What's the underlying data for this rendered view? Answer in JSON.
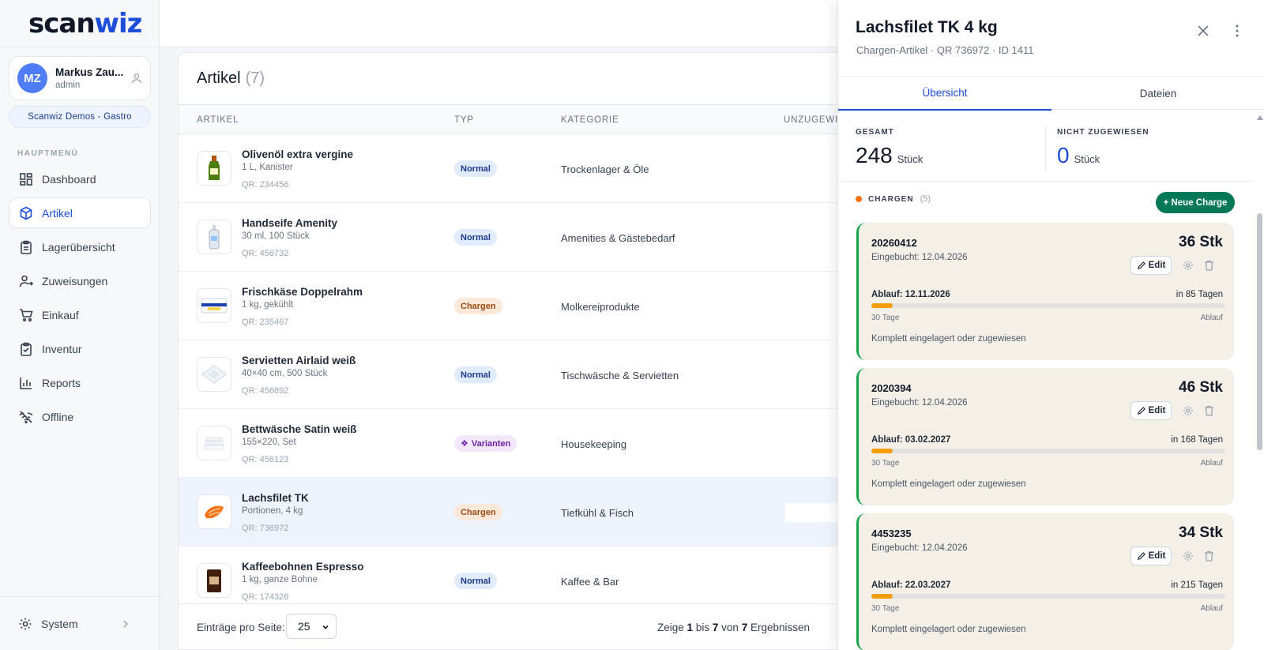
{
  "app": {
    "logo_a": "scan",
    "logo_b": "wiz"
  },
  "user": {
    "initials": "MZ",
    "name": "Markus Zau...",
    "role": "admin"
  },
  "org": "Scanwiz Demos - Gastro",
  "nav": {
    "section": "HAUPTMENÜ",
    "items": [
      {
        "label": "Dashboard",
        "icon": "dashboard-icon"
      },
      {
        "label": "Artikel",
        "icon": "box-icon",
        "active": true
      },
      {
        "label": "Lagerübersicht",
        "icon": "clipboard-icon"
      },
      {
        "label": "Zuweisungen",
        "icon": "user-assign-icon"
      },
      {
        "label": "Einkauf",
        "icon": "cart-icon"
      },
      {
        "label": "Inventur",
        "icon": "checklist-icon"
      },
      {
        "label": "Reports",
        "icon": "bar-chart-icon"
      },
      {
        "label": "Offline",
        "icon": "wifi-off-icon"
      }
    ],
    "system": "System"
  },
  "articles": {
    "title": "Artikel",
    "count": "(7)",
    "columns": {
      "artikel": "ARTIKEL",
      "typ": "TYP",
      "kategorie": "KATEGORIE",
      "unzugewiesen": "UNZUGEWIE"
    },
    "rows": [
      {
        "name": "Olivenöl extra vergine",
        "sub": "1 L, Kanister",
        "qr": "QR: 234456",
        "type": "Normal",
        "category": "Trockenlager & Öle"
      },
      {
        "name": "Handseife Amenity",
        "sub": "30 ml, 100 Stück",
        "qr": "QR: 456732",
        "type": "Normal",
        "category": "Amenities & Gästebedarf"
      },
      {
        "name": "Frischkäse Doppelrahm",
        "sub": "1 kg, gekühlt",
        "qr": "QR: 235467",
        "type": "Chargen",
        "category": "Molkereiprodukte"
      },
      {
        "name": "Servietten Airlaid weiß",
        "sub": "40×40 cm, 500 Stück",
        "qr": "QR: 456892",
        "type": "Normal",
        "category": "Tischwäsche & Servietten"
      },
      {
        "name": "Bettwäsche Satin weiß",
        "sub": "155×220, Set",
        "qr": "QR: 456123",
        "type": "Varianten",
        "category": "Housekeeping"
      },
      {
        "name": "Lachsfilet TK",
        "sub": "Portionen, 4 kg",
        "qr": "QR: 736972",
        "type": "Chargen",
        "category": "Tiefkühl & Fisch"
      },
      {
        "name": "Kaffeebohnen Espresso",
        "sub": "1 kg, ganze Bohne",
        "qr": "QR: 174326",
        "type": "Normal",
        "category": "Kaffee & Bar"
      }
    ],
    "footer": {
      "per_page_label": "Einträge pro Seite:",
      "per_page": "25",
      "res_a": "Zeige",
      "res_from": "1",
      "res_b": "bis",
      "res_to": "7",
      "res_c": "von",
      "res_total": "7",
      "res_d": "Ergebnissen"
    }
  },
  "drawer": {
    "title": "Lachsfilet TK 4 kg",
    "subtitle": "Chargen-Artikel · QR 736972 · ID 1411",
    "tabs": [
      "Übersicht",
      "Dateien"
    ],
    "stats": {
      "total_label": "GESAMT",
      "total": "248",
      "unit": "Stück",
      "unassigned_label": "NICHT ZUGEWIESEN",
      "unassigned": "0"
    },
    "chargen_label": "CHARGEN",
    "chargen_count": "(5)",
    "new_button": "+ Neue Charge",
    "batches": [
      {
        "number": "20260412",
        "booked": "Eingebucht: 12.04.2026",
        "qty": "36 Stk",
        "edit": "Edit",
        "expiry": "Ablauf: 12.11.2026",
        "days": "in 85 Tagen",
        "progress": 0.06,
        "left": "30 Tage",
        "right": "Ablauf",
        "status": "Komplett eingelagert oder zugewiesen"
      },
      {
        "number": "2020394",
        "booked": "Eingebucht: 12.04.2026",
        "qty": "46 Stk",
        "edit": "Edit",
        "expiry": "Ablauf: 03.02.2027",
        "days": "in 168 Tagen",
        "progress": 0.06,
        "left": "30 Tage",
        "right": "Ablauf",
        "status": "Komplett eingelagert oder zugewiesen"
      },
      {
        "number": "4453235",
        "booked": "Eingebucht: 12.04.2026",
        "qty": "34 Stk",
        "edit": "Edit",
        "expiry": "Ablauf: 22.03.2027",
        "days": "in 215 Tagen",
        "progress": 0.06,
        "left": "30 Tage",
        "right": "Ablauf",
        "status": "Komplett eingelagert oder zugewiesen"
      }
    ]
  }
}
